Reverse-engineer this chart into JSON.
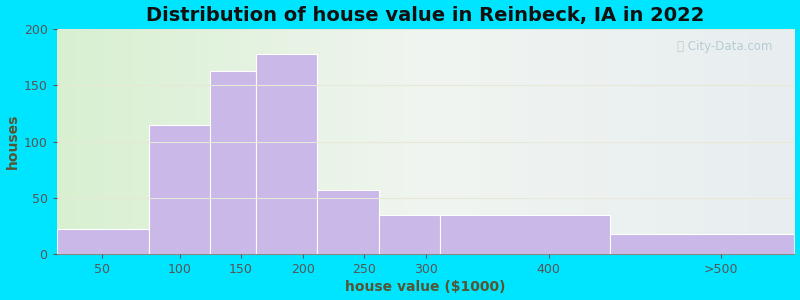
{
  "title": "Distribution of house value in Reinbeck, IA in 2022",
  "xlabel": "house value ($1000)",
  "ylabel": "houses",
  "bin_edges": [
    0,
    75,
    125,
    162,
    212,
    262,
    312,
    450,
    600
  ],
  "tick_positions": [
    37,
    100,
    150,
    200,
    250,
    300,
    400,
    540
  ],
  "tick_labels": [
    "50",
    "100",
    "150",
    "200",
    "250",
    "300",
    "400",
    ">500"
  ],
  "bar_heights": [
    22,
    115,
    163,
    178,
    57,
    35,
    35,
    18
  ],
  "bar_color": "#c9b8e8",
  "bar_edgecolor": "#ffffff",
  "ylim": [
    0,
    200
  ],
  "yticks": [
    0,
    50,
    100,
    150,
    200
  ],
  "background_outer": "#00e5ff",
  "background_plot": "#e8f5e3",
  "grid_color": "#e8e8d8",
  "title_fontsize": 14,
  "axis_fontsize": 10,
  "tick_fontsize": 9,
  "watermark_text": "⎙ City-Data.com"
}
